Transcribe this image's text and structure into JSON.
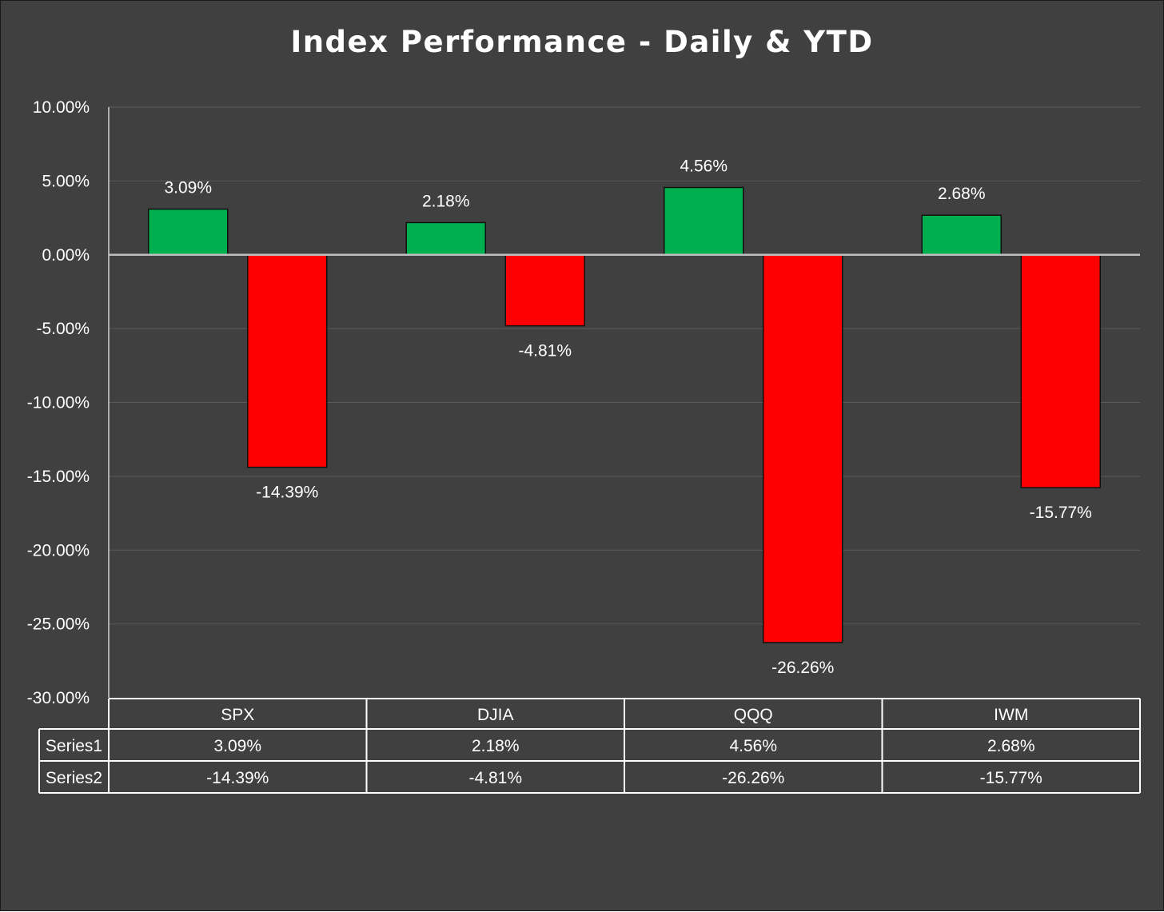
{
  "chart_data": {
    "type": "bar",
    "title": "Index Performance - Daily & YTD",
    "categories": [
      "SPX",
      "DJIA",
      "QQQ",
      "IWM"
    ],
    "series": [
      {
        "name": "Series1",
        "values": [
          3.09,
          2.18,
          4.56,
          2.68
        ],
        "labels": [
          "3.09%",
          "2.18%",
          "4.56%",
          "2.68%"
        ],
        "color": "#00b050"
      },
      {
        "name": "Series2",
        "values": [
          -14.39,
          -4.81,
          -26.26,
          -15.77
        ],
        "labels": [
          "-14.39%",
          "-4.81%",
          "-26.26%",
          "-15.77%"
        ],
        "color": "#ff0000"
      }
    ],
    "ylim": [
      -30,
      10
    ],
    "yticks": [
      10,
      5,
      0,
      -5,
      -10,
      -15,
      -20,
      -25,
      -30
    ],
    "ytick_labels": [
      "10.00%",
      "5.00%",
      "0.00%",
      "-5.00%",
      "-10.00%",
      "-15.00%",
      "-20.00%",
      "-25.00%",
      "-30.00%"
    ],
    "grid": true,
    "data_table": true,
    "background": "#404040",
    "gridline_color": "#5a5a5a",
    "text_color": "#ffffff"
  }
}
